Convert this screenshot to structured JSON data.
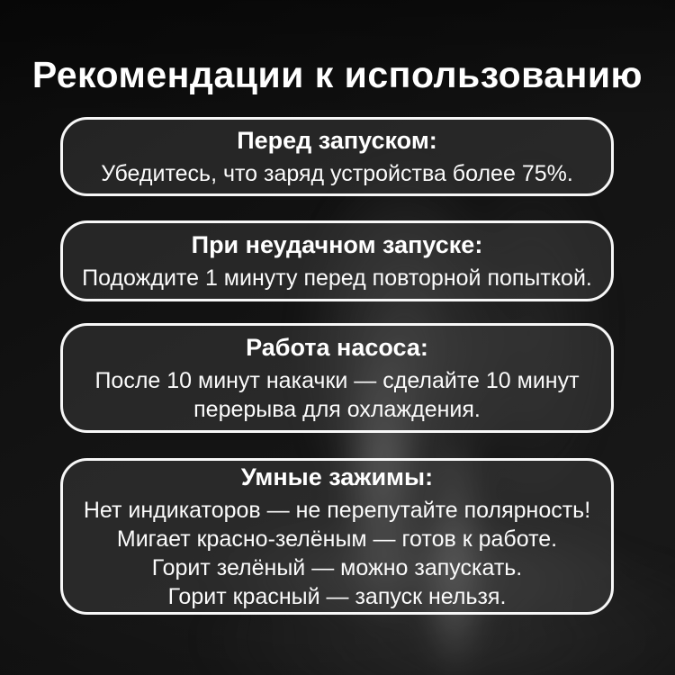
{
  "page": {
    "title": "Рекомендации к использованию",
    "colors": {
      "background": "#111111",
      "card_border": "#f7f7f7",
      "card_fill": "rgba(72,72,72,0.40)",
      "text": "#ffffff"
    }
  },
  "cards": [
    {
      "heading": "Перед запуском:",
      "lines": [
        "Убедитесь, что заряд устройства более 75%."
      ]
    },
    {
      "heading": "При неудачном запуске:",
      "lines": [
        "Подождите 1 минуту перед повторной попыткой."
      ]
    },
    {
      "heading": "Работа насоса:",
      "lines": [
        "После 10 минут накачки — сделайте 10 минут",
        "перерыва для охлаждения."
      ]
    },
    {
      "heading": "Умные зажимы:",
      "lines": [
        "Нет индикаторов — не перепутайте полярность!",
        "Мигает красно-зелёным — готов к работе.",
        "Горит зелёный — можно запускать.",
        "Горит красный — запуск нельзя."
      ]
    }
  ]
}
